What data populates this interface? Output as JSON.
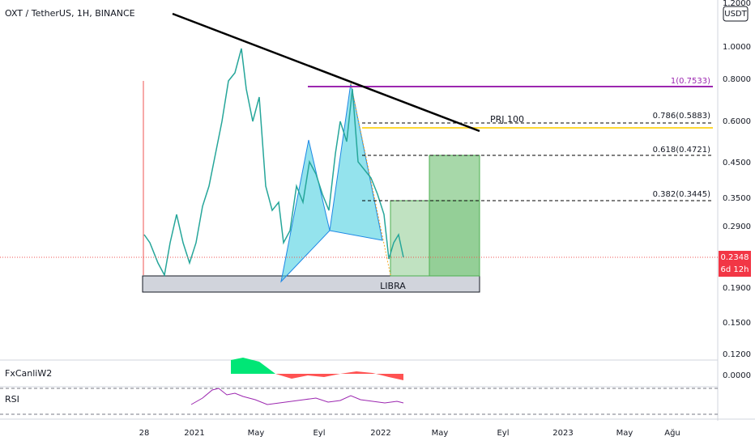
{
  "header": {
    "symbol": "OXT / TetherUS, 1H, BINANCE"
  },
  "price_axis": {
    "currency": "USDT",
    "labels": [
      "1.2000",
      "1.0000",
      "0.8000",
      "0.6000",
      "0.4500",
      "0.3500",
      "0.2900",
      "0.1900",
      "0.1500",
      "0.1200"
    ],
    "last_price": "0.2348",
    "countdown": "6d 12h"
  },
  "time_axis": {
    "labels": [
      "28",
      "2021",
      "May",
      "Eyl",
      "2022",
      "May",
      "Eyl",
      "2023",
      "May",
      "Ağu"
    ]
  },
  "drawings": {
    "fib_levels": [
      "1(0.7533)",
      "0.786(0.5883)",
      "0.618(0.4721)",
      "0.382(0.3445)"
    ],
    "projection": "PRJ 100",
    "zone": "LIBRA"
  },
  "indicators": {
    "oscillator": {
      "name": "FxCanliW2",
      "value_label": "0.0000"
    },
    "rsi": {
      "name": "RSI"
    }
  }
}
